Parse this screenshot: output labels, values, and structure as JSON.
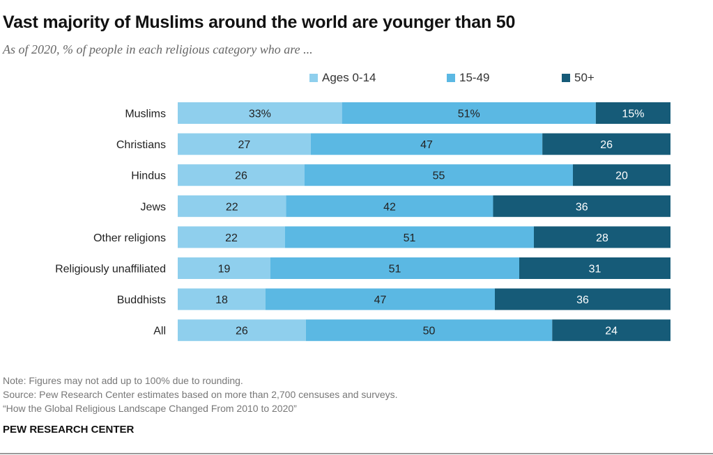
{
  "header": {
    "title": "Vast majority of Muslims around the world are younger than 50",
    "subtitle": "As of 2020, % of people in each religious category who are ..."
  },
  "chart_data": {
    "type": "bar",
    "orientation": "horizontal",
    "stacked": true,
    "categories": [
      "Muslims",
      "Christians",
      "Hindus",
      "Jews",
      "Other religions",
      "Religiously unaffiliated",
      "Buddhists",
      "All"
    ],
    "series": [
      {
        "name": "Ages 0-14",
        "color": "#8fcfed",
        "values": [
          33,
          27,
          26,
          22,
          22,
          19,
          18,
          26
        ],
        "labels": [
          "33%",
          "27",
          "26",
          "22",
          "22",
          "19",
          "18",
          "26"
        ]
      },
      {
        "name": "15-49",
        "color": "#5bb8e3",
        "values": [
          51,
          47,
          55,
          42,
          51,
          51,
          47,
          50
        ],
        "labels": [
          "51%",
          "47",
          "55",
          "42",
          "51",
          "51",
          "47",
          "50"
        ]
      },
      {
        "name": "50+",
        "color": "#165b78",
        "values": [
          15,
          26,
          20,
          36,
          28,
          31,
          36,
          24
        ],
        "labels": [
          "15%",
          "26",
          "20",
          "36",
          "28",
          "31",
          "36",
          "24"
        ]
      }
    ],
    "legend_position": "top",
    "grid": false
  },
  "footer": {
    "note": "Note: Figures may not add up to 100% due to rounding.",
    "source": "Source: Pew Research Center estimates based on more than 2,700 censuses and surveys.",
    "report": "“How the Global Religious Landscape Changed From 2010 to 2020”",
    "brand": "PEW RESEARCH CENTER"
  }
}
